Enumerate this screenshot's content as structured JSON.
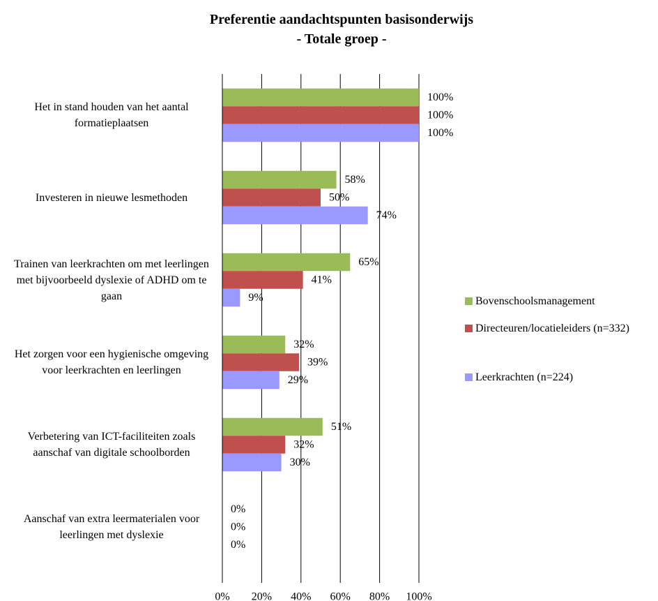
{
  "chart_data": {
    "type": "hbar",
    "title": "Preferentie aandachtspunten basisonderwijs",
    "subtitle": "- Totale groep -",
    "categories": [
      "Het in stand houden van het aantal formatieplaatsen",
      "Investeren in nieuwe lesmethoden",
      "Trainen van leerkrachten om met leerlingen met bijvoorbeeld dyslexie of ADHD om te gaan",
      "Het zorgen voor een hygienische omgeving voor leerkrachten en leerlingen",
      "Verbetering van ICT-faciliteiten zoals aanschaf van digitale schoolborden",
      "Aanschaf van extra leermaterialen voor leerlingen met dyslexie"
    ],
    "series": [
      {
        "name": "Bovenschoolsmanagement",
        "color": "#9bbb59",
        "values": [
          100,
          58,
          65,
          32,
          51,
          0
        ],
        "value_labels": [
          "100%",
          "58%",
          "65%",
          "32%",
          "51%",
          "0%"
        ]
      },
      {
        "name": "Directeuren/locatieleiders (n=332)",
        "color": "#c0504d",
        "values": [
          100,
          50,
          41,
          39,
          32,
          0
        ],
        "value_labels": [
          "100%",
          "50%",
          "41%",
          "39%",
          "32%",
          "0%"
        ]
      },
      {
        "name": "Leerkrachten (n=224)",
        "color": "#9999ff",
        "values": [
          100,
          74,
          9,
          29,
          30,
          0
        ],
        "value_labels": [
          "100%",
          "74%",
          "9%",
          "29%",
          "30%",
          "0%"
        ]
      }
    ],
    "xlim": [
      0,
      100
    ],
    "xticks": [
      {
        "value": 0,
        "label": "0%"
      },
      {
        "value": 20,
        "label": "20%"
      },
      {
        "value": 40,
        "label": "40%"
      },
      {
        "value": 60,
        "label": "60%"
      },
      {
        "value": 80,
        "label": "80%"
      },
      {
        "value": 100,
        "label": "100%"
      }
    ],
    "grid": true,
    "legend": "right"
  }
}
